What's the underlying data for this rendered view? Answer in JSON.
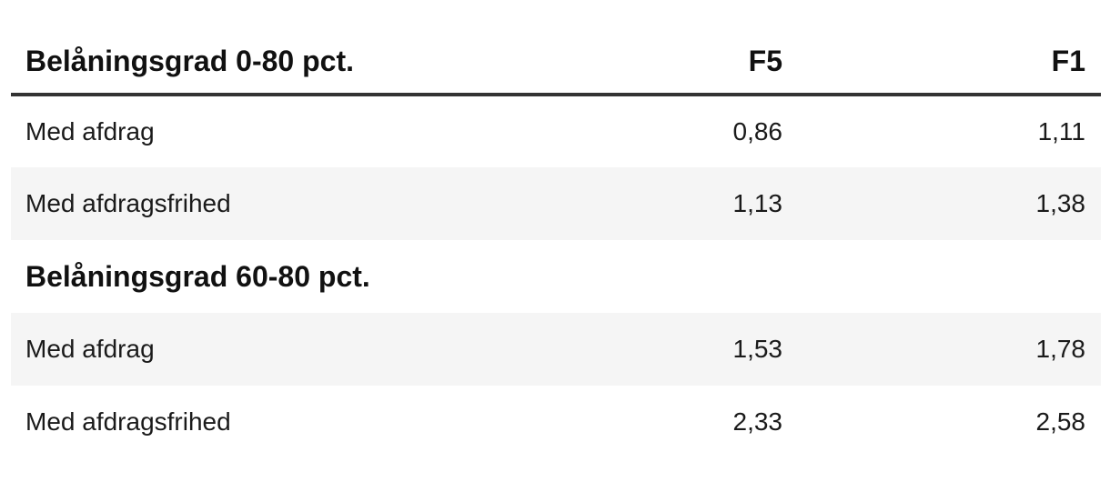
{
  "colors": {
    "background": "#ffffff",
    "row_stripe": "#f5f5f5",
    "header_rule": "#333333",
    "text": "#1a1a1a",
    "heading_text": "#111111"
  },
  "table": {
    "header": {
      "title": "Belåningsgrad 0-80 pct.",
      "f5": "F5",
      "f1": "F1"
    },
    "rows": [
      {
        "label": "Med afdrag",
        "f5": "0,86",
        "f1": "1,11",
        "shaded": false,
        "section": false
      },
      {
        "label": "Med afdragsfrihed",
        "f5": "1,13",
        "f1": "1,38",
        "shaded": true,
        "section": false
      },
      {
        "label": "Belåningsgrad 60-80 pct.",
        "f5": "",
        "f1": "",
        "shaded": false,
        "section": true
      },
      {
        "label": "Med afdrag",
        "f5": "1,53",
        "f1": "1,78",
        "shaded": true,
        "section": false
      },
      {
        "label": "Med afdragsfrihed",
        "f5": "2,33",
        "f1": "2,58",
        "shaded": false,
        "section": false
      }
    ]
  },
  "chart_data": {
    "type": "table",
    "title": "Belåningsgrad 0-80 pct.",
    "columns": [
      "",
      "F5",
      "F1"
    ],
    "sections": [
      {
        "section": "Belåningsgrad 0-80 pct.",
        "rows": [
          {
            "label": "Med afdrag",
            "F5": 0.86,
            "F1": 1.11
          },
          {
            "label": "Med afdragsfrihed",
            "F5": 1.13,
            "F1": 1.38
          }
        ]
      },
      {
        "section": "Belåningsgrad 60-80 pct.",
        "rows": [
          {
            "label": "Med afdrag",
            "F5": 1.53,
            "F1": 1.78
          },
          {
            "label": "Med afdragsfrihed",
            "F5": 2.33,
            "F1": 2.58
          }
        ]
      }
    ],
    "notes": "Decimal comma formatting (Danish locale); zebra striping on alternate rows; thick dark rule under header row"
  }
}
